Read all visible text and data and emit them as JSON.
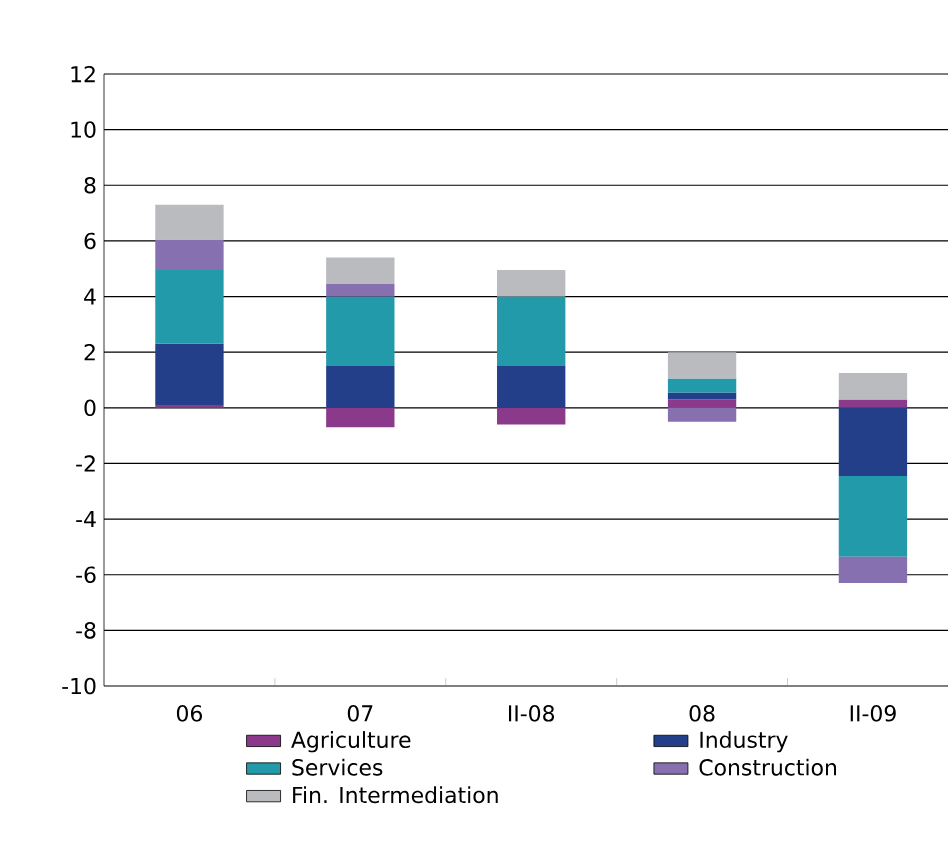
{
  "chart_data": {
    "type": "bar",
    "stacked": true,
    "categories": [
      "06",
      "07",
      "II-08",
      "08",
      "II-09"
    ],
    "series": [
      {
        "name": "Agriculture",
        "color": "#8b3a8b",
        "values": [
          0.1,
          -0.7,
          -0.6,
          0.3,
          0.3
        ]
      },
      {
        "name": "Industry",
        "color": "#233f8a",
        "values": [
          2.2,
          1.5,
          1.5,
          0.25,
          -2.45
        ]
      },
      {
        "name": "Services",
        "color": "#229aa9",
        "values": [
          2.65,
          2.5,
          2.5,
          0.5,
          -2.9
        ]
      },
      {
        "name": "Construction",
        "color": "#8670b0",
        "values": [
          1.1,
          0.45,
          0,
          -0.5,
          -0.95
        ]
      },
      {
        "name": "Fin. Intermediation",
        "color": "#babbbf",
        "values": [
          1.25,
          0.95,
          0.95,
          0.95,
          0.95
        ]
      }
    ],
    "ylim": [
      -10,
      12
    ],
    "yticks": [
      -10,
      -8,
      -6,
      -4,
      -2,
      0,
      2,
      4,
      6,
      8,
      10,
      12
    ],
    "grid": "y",
    "legend": "bottom"
  }
}
